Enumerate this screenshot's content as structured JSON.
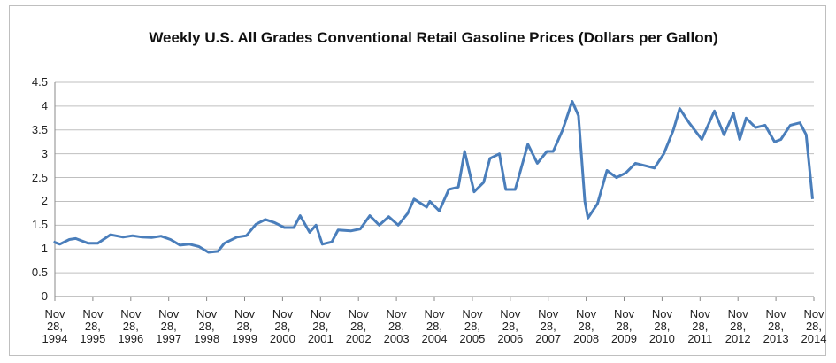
{
  "chart_data": {
    "type": "line",
    "title": "Weekly U.S. All Grades Conventional Retail Gasoline Prices  (Dollars per Gallon)",
    "x": [
      "1994-11",
      "1995-01",
      "1995-04",
      "1995-06",
      "1995-10",
      "1996-01",
      "1996-05",
      "1996-09",
      "1996-12",
      "1997-03",
      "1997-06",
      "1997-09",
      "1997-12",
      "1998-03",
      "1998-06",
      "1998-09",
      "1998-12",
      "1999-03",
      "1999-05",
      "1999-09",
      "1999-12",
      "2000-03",
      "2000-06",
      "2000-09",
      "2000-12",
      "2001-03",
      "2001-05",
      "2001-08",
      "2001-10",
      "2001-12",
      "2002-03",
      "2002-05",
      "2002-09",
      "2002-12",
      "2003-03",
      "2003-06",
      "2003-09",
      "2003-12",
      "2004-03",
      "2004-05",
      "2004-09",
      "2004-10",
      "2005-01",
      "2005-04",
      "2005-07",
      "2005-09",
      "2005-12",
      "2006-03",
      "2006-05",
      "2006-08",
      "2006-10",
      "2007-01",
      "2007-05",
      "2007-08",
      "2007-11",
      "2008-01",
      "2008-04",
      "2008-07",
      "2008-09",
      "2008-11",
      "2008-12",
      "2009-03",
      "2009-06",
      "2009-09",
      "2009-12",
      "2010-03",
      "2010-06",
      "2010-09",
      "2010-12",
      "2011-03",
      "2011-05",
      "2011-08",
      "2011-12",
      "2012-04",
      "2012-07",
      "2012-10",
      "2012-12",
      "2013-02",
      "2013-05",
      "2013-08",
      "2013-11",
      "2014-01",
      "2014-04",
      "2014-07",
      "2014-09",
      "2014-11"
    ],
    "series": [
      {
        "name": "Weekly U.S. All Grades Conventional Retail Gasoline Prices",
        "color": "#4a7ebb",
        "values": [
          1.15,
          1.1,
          1.2,
          1.22,
          1.12,
          1.12,
          1.3,
          1.25,
          1.28,
          1.25,
          1.24,
          1.27,
          1.2,
          1.08,
          1.1,
          1.05,
          0.93,
          0.95,
          1.12,
          1.25,
          1.28,
          1.52,
          1.62,
          1.55,
          1.45,
          1.45,
          1.7,
          1.35,
          1.5,
          1.1,
          1.15,
          1.4,
          1.38,
          1.42,
          1.7,
          1.5,
          1.68,
          1.5,
          1.75,
          2.05,
          1.88,
          2.0,
          1.8,
          2.25,
          2.3,
          3.05,
          2.2,
          2.4,
          2.9,
          3.0,
          2.25,
          2.25,
          3.2,
          2.8,
          3.05,
          3.05,
          3.5,
          4.1,
          3.8,
          2.0,
          1.65,
          1.95,
          2.65,
          2.5,
          2.6,
          2.8,
          2.75,
          2.7,
          3.0,
          3.5,
          3.95,
          3.65,
          3.3,
          3.9,
          3.4,
          3.85,
          3.3,
          3.75,
          3.55,
          3.6,
          3.25,
          3.3,
          3.6,
          3.65,
          3.4,
          2.05
        ]
      }
    ],
    "xlim": [
      "1994-11-28",
      "2014-11-28"
    ],
    "xticks": [
      {
        "value": "1994-11-28",
        "label": "Nov 28, 1994"
      },
      {
        "value": "1995-11-28",
        "label": "Nov 28, 1995"
      },
      {
        "value": "1996-11-28",
        "label": "Nov 28, 1996"
      },
      {
        "value": "1997-11-28",
        "label": "Nov 28, 1997"
      },
      {
        "value": "1998-11-28",
        "label": "Nov 28, 1998"
      },
      {
        "value": "1999-11-28",
        "label": "Nov 28, 1999"
      },
      {
        "value": "2000-11-28",
        "label": "Nov 28, 2000"
      },
      {
        "value": "2001-11-28",
        "label": "Nov 28, 2001"
      },
      {
        "value": "2002-11-28",
        "label": "Nov 28, 2002"
      },
      {
        "value": "2003-11-28",
        "label": "Nov 28, 2003"
      },
      {
        "value": "2004-11-28",
        "label": "Nov 28, 2004"
      },
      {
        "value": "2005-11-28",
        "label": "Nov 28, 2005"
      },
      {
        "value": "2006-11-28",
        "label": "Nov 28, 2006"
      },
      {
        "value": "2007-11-28",
        "label": "Nov 28, 2007"
      },
      {
        "value": "2008-11-28",
        "label": "Nov 28, 2008"
      },
      {
        "value": "2009-11-28",
        "label": "Nov 28, 2009"
      },
      {
        "value": "2010-11-28",
        "label": "Nov 28, 2010"
      },
      {
        "value": "2011-11-28",
        "label": "Nov 28, 2011"
      },
      {
        "value": "2012-11-28",
        "label": "Nov 28, 2012"
      },
      {
        "value": "2013-11-28",
        "label": "Nov 28, 2013"
      },
      {
        "value": "2014-11-28",
        "label": "Nov 28, 2014"
      }
    ],
    "ylim": [
      0,
      4.5
    ],
    "yticks": [
      0,
      0.5,
      1,
      1.5,
      2,
      2.5,
      3,
      3.5,
      4,
      4.5
    ],
    "grid": true
  }
}
